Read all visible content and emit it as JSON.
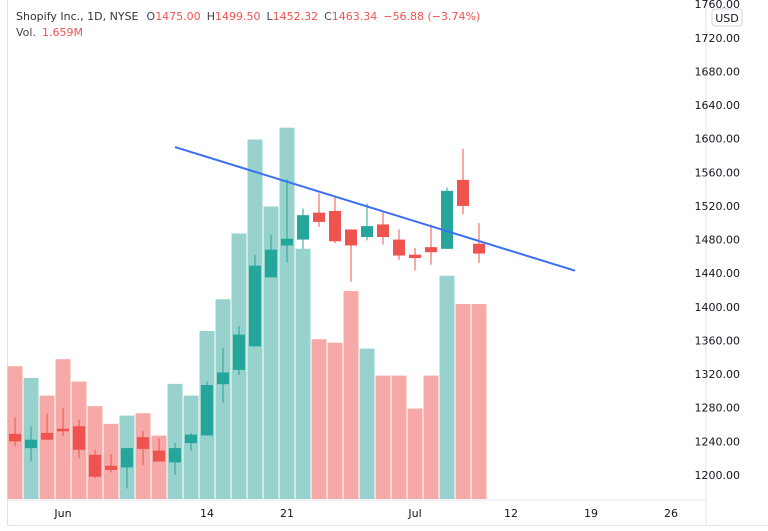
{
  "header": {
    "symbol": "Shopify Inc., 1D, NYSE",
    "o_label": "O",
    "open": "1475.00",
    "h_label": "H",
    "high": "1499.50",
    "l_label": "L",
    "low": "1452.32",
    "c_label": "C",
    "close": "1463.34",
    "change": "−56.88 (−3.74%)",
    "vol_label": "Vol.",
    "volume": "1.659M"
  },
  "currency": "USD",
  "colors": {
    "up": "#26a69a",
    "down": "#ef5350",
    "vol_up": "#97d3cc",
    "vol_down": "#f7a9a7",
    "trendline": "#3b6ef5"
  },
  "chart_data": {
    "type": "candlestick",
    "title": "Shopify Inc., 1D, NYSE",
    "ylim": [
      1180,
      1760
    ],
    "y_ticks": [
      "1200.00",
      "1240.00",
      "1280.00",
      "1320.00",
      "1360.00",
      "1400.00",
      "1440.00",
      "1480.00",
      "1520.00",
      "1560.00",
      "1600.00",
      "1640.00",
      "1680.00",
      "1720.00",
      "1760.00"
    ],
    "x_ticks": [
      {
        "date": "2021-06-01",
        "label": "Jun"
      },
      {
        "date": "2021-06-14",
        "label": "14"
      },
      {
        "date": "2021-06-21",
        "label": "21"
      },
      {
        "date": "2021-07-01",
        "label": "Jul"
      },
      {
        "date": "2021-07-12",
        "label": "12"
      },
      {
        "date": "2021-07-19",
        "label": "19"
      },
      {
        "date": "2021-07-26",
        "label": "26"
      }
    ],
    "grid": false,
    "candles": [
      {
        "date": "2021-05-26",
        "o": 1249,
        "h": 1269,
        "l": 1234,
        "c": 1240,
        "v": 1.13
      },
      {
        "date": "2021-05-27",
        "o": 1232,
        "h": 1258,
        "l": 1216,
        "c": 1242,
        "v": 1.03
      },
      {
        "date": "2021-05-28",
        "o": 1250,
        "h": 1273,
        "l": 1242,
        "c": 1242,
        "v": 0.88
      },
      {
        "date": "2021-06-01",
        "o": 1255,
        "h": 1280,
        "l": 1246,
        "c": 1252,
        "v": 1.19
      },
      {
        "date": "2021-06-02",
        "o": 1258,
        "h": 1266,
        "l": 1220,
        "c": 1230,
        "v": 1.0
      },
      {
        "date": "2021-06-03",
        "o": 1224,
        "h": 1230,
        "l": 1196,
        "c": 1198,
        "v": 0.79
      },
      {
        "date": "2021-06-04",
        "o": 1211,
        "h": 1225,
        "l": 1203,
        "c": 1206,
        "v": 0.64
      },
      {
        "date": "2021-06-07",
        "o": 1209,
        "h": 1232,
        "l": 1184,
        "c": 1232,
        "v": 0.71
      },
      {
        "date": "2021-06-08",
        "o": 1245,
        "h": 1252,
        "l": 1212,
        "c": 1231,
        "v": 0.73
      },
      {
        "date": "2021-06-09",
        "o": 1229,
        "h": 1244,
        "l": 1216,
        "c": 1216,
        "v": 0.54
      },
      {
        "date": "2021-06-10",
        "o": 1215,
        "h": 1238,
        "l": 1200,
        "c": 1232,
        "v": 0.98
      },
      {
        "date": "2021-06-11",
        "o": 1238,
        "h": 1250,
        "l": 1229,
        "c": 1248,
        "v": 0.88
      },
      {
        "date": "2021-06-14",
        "o": 1247,
        "h": 1311,
        "l": 1247,
        "c": 1307,
        "v": 1.43
      },
      {
        "date": "2021-06-15",
        "o": 1308,
        "h": 1351,
        "l": 1286,
        "c": 1322,
        "v": 1.7
      },
      {
        "date": "2021-06-16",
        "o": 1325,
        "h": 1377,
        "l": 1319,
        "c": 1367,
        "v": 2.26
      },
      {
        "date": "2021-06-17",
        "o": 1353,
        "h": 1462,
        "l": 1353,
        "c": 1449,
        "v": 3.06
      },
      {
        "date": "2021-06-18",
        "o": 1435,
        "h": 1486,
        "l": 1435,
        "c": 1468,
        "v": 2.49
      },
      {
        "date": "2021-06-21",
        "o": 1473,
        "h": 1552,
        "l": 1453,
        "c": 1481,
        "v": 3.16
      },
      {
        "date": "2021-06-22",
        "o": 1480,
        "h": 1517,
        "l": 1469,
        "c": 1509,
        "v": 2.13
      },
      {
        "date": "2021-06-23",
        "o": 1512,
        "h": 1535,
        "l": 1495,
        "c": 1501,
        "v": 1.36
      },
      {
        "date": "2021-06-24",
        "o": 1514,
        "h": 1530,
        "l": 1476,
        "c": 1478,
        "v": 1.33
      },
      {
        "date": "2021-06-25",
        "o": 1492,
        "h": 1492,
        "l": 1430,
        "c": 1473,
        "v": 1.77
      },
      {
        "date": "2021-06-28",
        "o": 1483,
        "h": 1523,
        "l": 1479,
        "c": 1496,
        "v": 1.28
      },
      {
        "date": "2021-06-29",
        "o": 1498,
        "h": 1513,
        "l": 1474,
        "c": 1483,
        "v": 1.05
      },
      {
        "date": "2021-06-30",
        "o": 1480,
        "h": 1492,
        "l": 1456,
        "c": 1461,
        "v": 1.05
      },
      {
        "date": "2021-07-01",
        "o": 1462,
        "h": 1470,
        "l": 1443,
        "c": 1458,
        "v": 0.77
      },
      {
        "date": "2021-07-02",
        "o": 1471,
        "h": 1498,
        "l": 1450,
        "c": 1465,
        "v": 1.05
      },
      {
        "date": "2021-07-06",
        "o": 1469,
        "h": 1542,
        "l": 1469,
        "c": 1538,
        "v": 1.9
      },
      {
        "date": "2021-07-07",
        "o": 1551,
        "h": 1588,
        "l": 1510,
        "c": 1520,
        "v": 1.66
      },
      {
        "date": "2021-07-08",
        "o": 1475,
        "h": 1499.5,
        "l": 1452.32,
        "c": 1463.34,
        "v": 1.659
      }
    ],
    "trendline": {
      "from": {
        "date": "2021-06-10",
        "price": 1590
      },
      "to": {
        "date": "2021-07-16",
        "price": 1443
      }
    }
  }
}
